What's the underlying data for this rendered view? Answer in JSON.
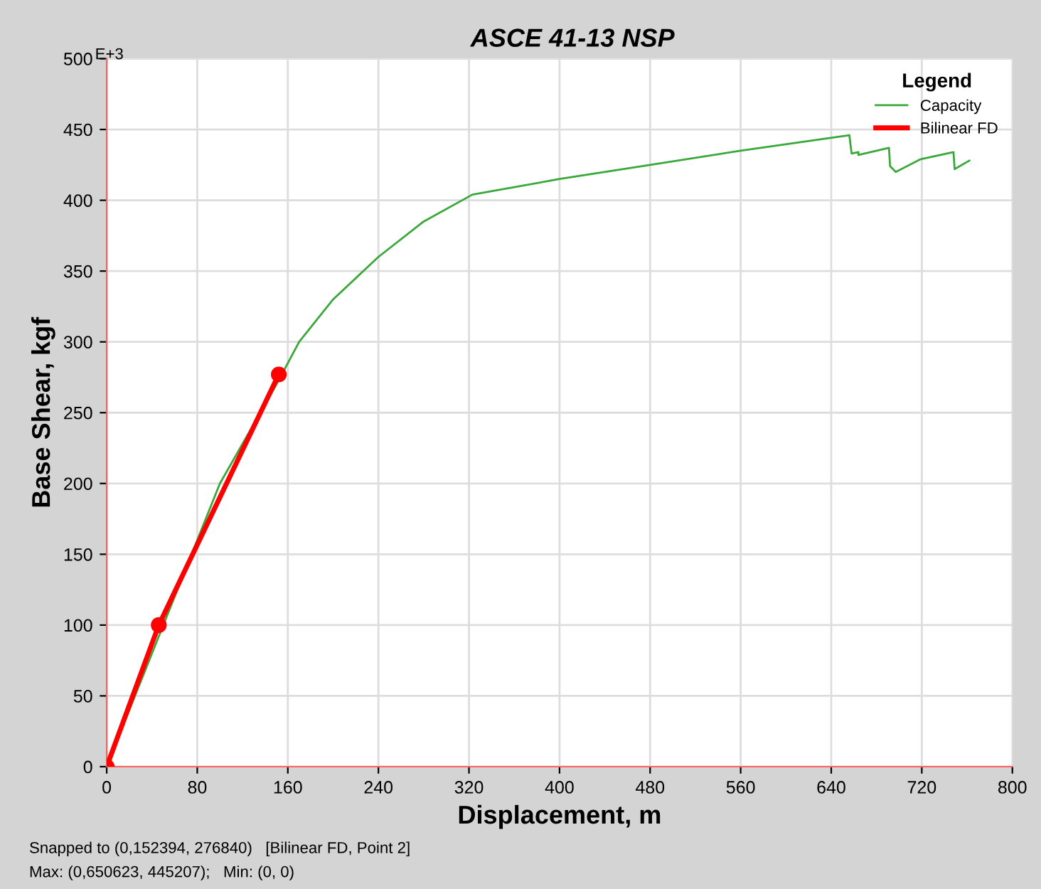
{
  "chart_data": {
    "type": "line",
    "title": "ASCE 41-13 NSP",
    "xlabel": "Displacement, m",
    "ylabel": "Base Shear, kgf",
    "legend_title": "Legend",
    "xlim": [
      0,
      800
    ],
    "xticks": [
      0,
      80,
      160,
      240,
      320,
      400,
      480,
      560,
      640,
      720,
      800
    ],
    "ylim": [
      0,
      500
    ],
    "yticks": [
      0,
      50,
      100,
      150,
      200,
      250,
      300,
      350,
      400,
      450,
      500
    ],
    "grid": true,
    "legend": "top right",
    "annotations": [
      "E+3",
      "Snapped to (0,152394, 276840)   [Bilinear FD, Point 2]",
      "Max: (0,650623, 445207);   Min: (0, 0)"
    ],
    "series": [
      {
        "name": "Capacity",
        "color": "#3aa83a",
        "marker": "none",
        "x": [
          0,
          100,
          150,
          170,
          200,
          240,
          280,
          323,
          400,
          480,
          560,
          656,
          658,
          664,
          664,
          691,
          692,
          697,
          719,
          748,
          749,
          762
        ],
        "values": [
          0,
          200,
          270,
          300,
          330,
          360,
          385,
          404,
          415,
          425,
          435,
          446,
          433,
          434,
          432,
          437,
          424,
          420,
          429,
          434,
          422,
          428
        ]
      },
      {
        "name": "Bilinear FD",
        "color": "#ff0000",
        "marker": "circle",
        "x": [
          0,
          46,
          152
        ],
        "values": [
          0,
          100,
          277
        ]
      }
    ]
  }
}
